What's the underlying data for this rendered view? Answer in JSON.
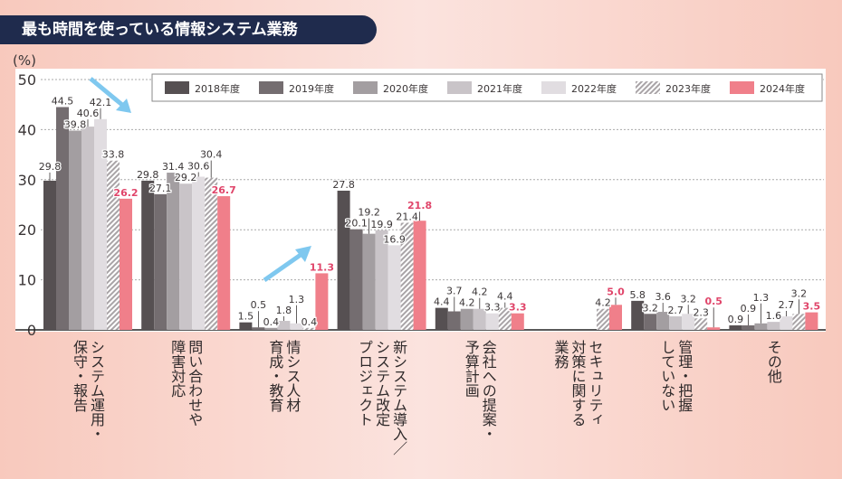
{
  "title": "最も時間を使っている情報システム業務",
  "chart_data": {
    "type": "bar",
    "title": "最も時間を使っている情報システム業務",
    "ylabel": "(%)",
    "ylim": [
      0,
      50
    ],
    "yticks": [
      0,
      10,
      20,
      30,
      40,
      50
    ],
    "grid": true,
    "legend_placement": "top",
    "categories": [
      "システム運用・\n保守・報告",
      "問い合わせや\n障害対応",
      "情シス人材\n育成・教育",
      "新システム導入／\nシステム改定\nプロジェクト",
      "会社への提案・\n予算計画",
      "セキュリティ\n対策に関する\n業務",
      "管理・把握\nしていない",
      "その他"
    ],
    "series": [
      {
        "name": "2018年度",
        "color": "#565052",
        "values": [
          29.8,
          29.8,
          1.5,
          27.8,
          4.4,
          null,
          5.8,
          0.9
        ]
      },
      {
        "name": "2019年度",
        "color": "#746d70",
        "values": [
          44.5,
          27.1,
          0.5,
          20.1,
          3.7,
          null,
          3.2,
          0.9
        ]
      },
      {
        "name": "2020年度",
        "color": "#a39ea1",
        "values": [
          39.8,
          31.4,
          0.4,
          19.2,
          4.2,
          null,
          3.6,
          1.3
        ]
      },
      {
        "name": "2021年度",
        "color": "#c9c4c8",
        "values": [
          40.6,
          29.2,
          1.8,
          19.9,
          4.2,
          null,
          2.7,
          1.6
        ]
      },
      {
        "name": "2022年度",
        "color": "#e1dde1",
        "values": [
          42.1,
          30.6,
          1.3,
          16.9,
          3.3,
          null,
          3.2,
          2.7
        ]
      },
      {
        "name": "2023年度",
        "color": "hatch",
        "values": [
          33.8,
          30.4,
          0.4,
          21.4,
          4.4,
          4.2,
          2.3,
          3.2
        ]
      },
      {
        "name": "2024年度",
        "color": "#f07f8a",
        "values": [
          26.2,
          26.7,
          11.3,
          21.8,
          3.3,
          5.0,
          0.5,
          3.5
        ]
      }
    ],
    "highlight_label_color": "#e0456a"
  }
}
